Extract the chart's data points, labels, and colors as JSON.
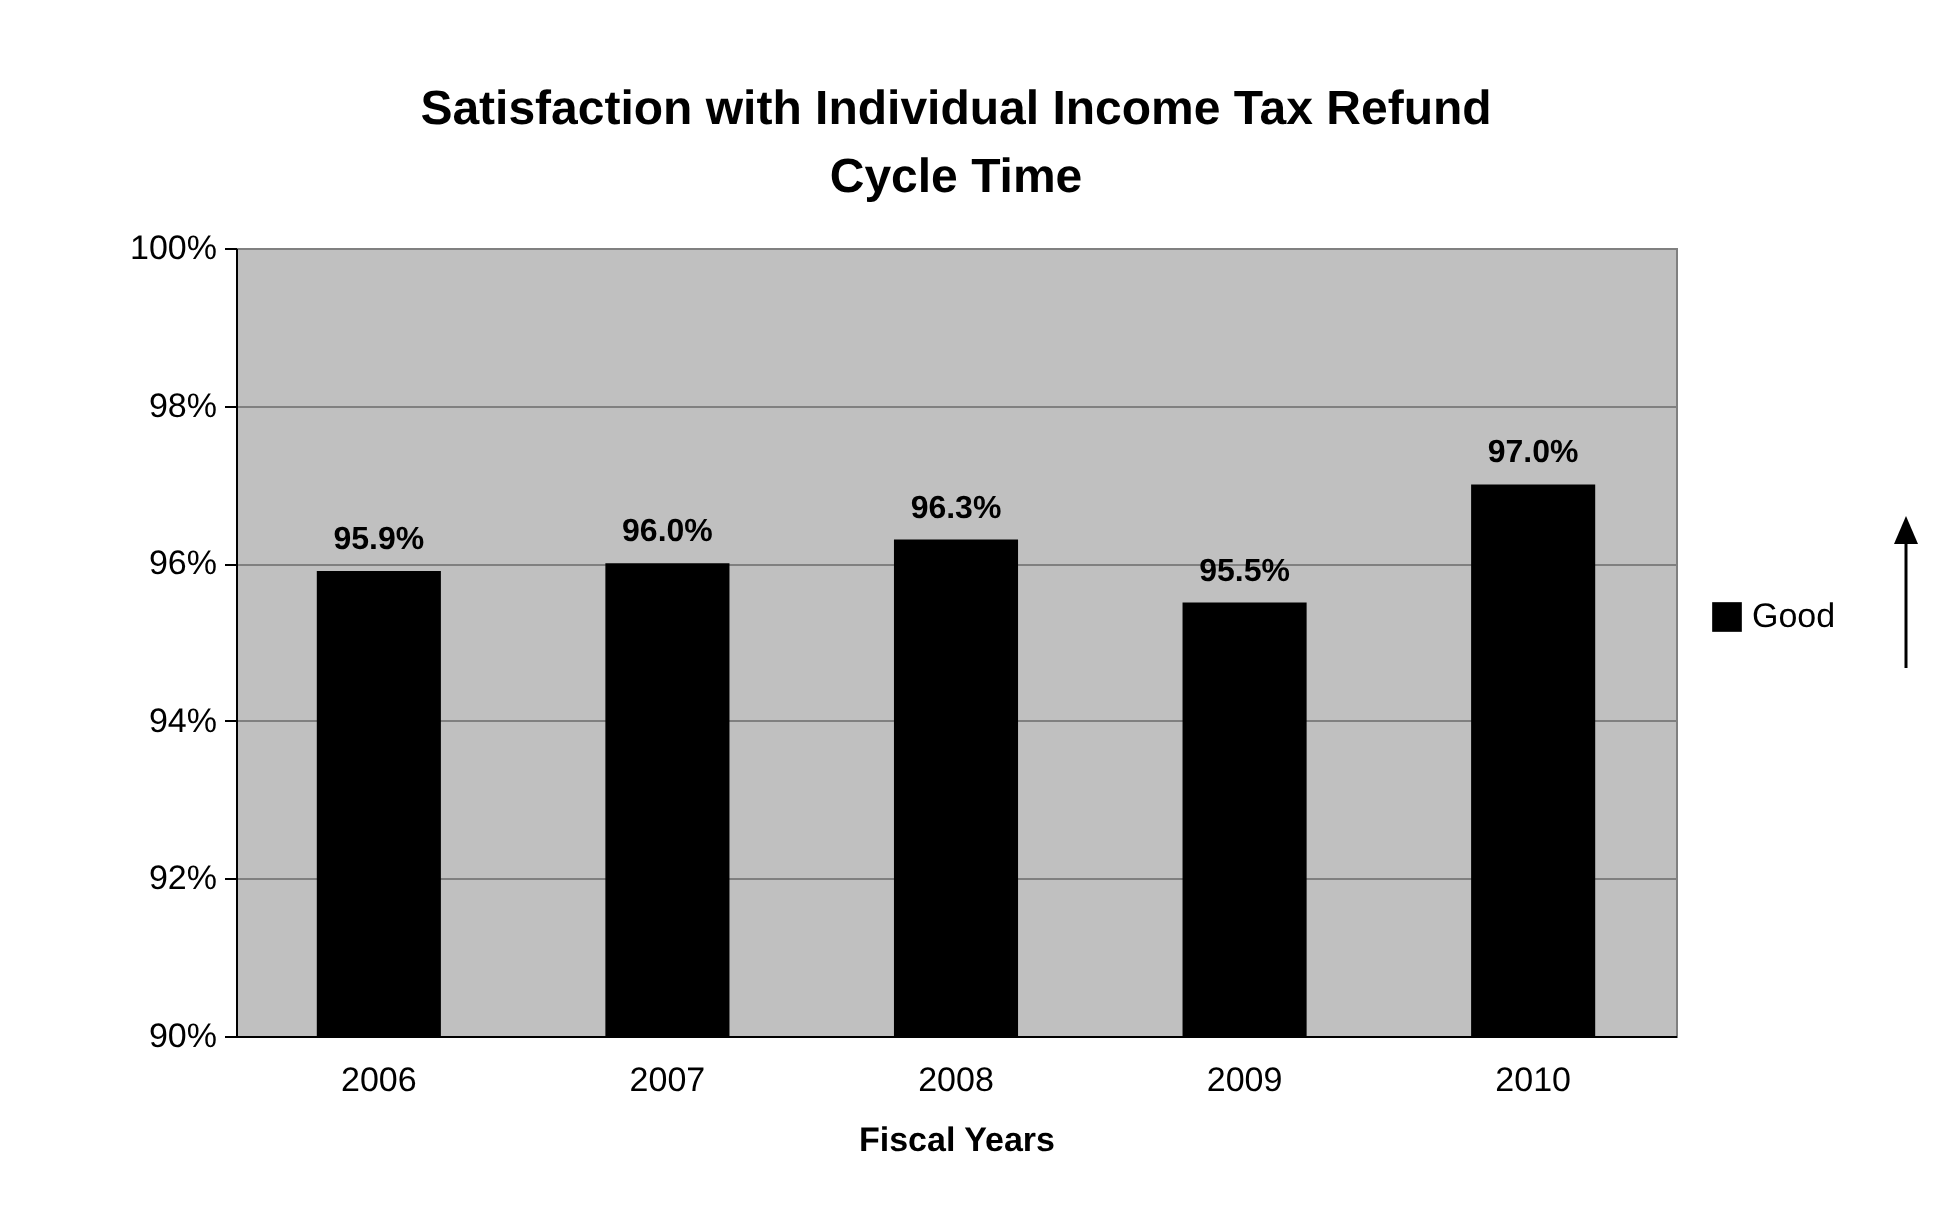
{
  "chart_data": {
    "type": "bar",
    "title": "Satisfaction with Individual Income Tax Refund Cycle Time",
    "xlabel": "Fiscal Years",
    "categories": [
      "2006",
      "2007",
      "2008",
      "2009",
      "2010"
    ],
    "series": [
      {
        "name": "Good",
        "color": "#000000",
        "values": [
          95.9,
          96.0,
          96.3,
          95.5,
          97.0
        ],
        "value_labels": [
          "95.9%",
          "96.0%",
          "96.3%",
          "95.5%",
          "97.0%"
        ]
      }
    ],
    "ylim": [
      90,
      100
    ],
    "yticks": [
      {
        "value": 90,
        "label": "90%"
      },
      {
        "value": 92,
        "label": "92%"
      },
      {
        "value": 94,
        "label": "94%"
      },
      {
        "value": 96,
        "label": "96%"
      },
      {
        "value": 98,
        "label": "98%"
      },
      {
        "value": 100,
        "label": "100%"
      }
    ],
    "grid": "y",
    "legend": "right"
  }
}
